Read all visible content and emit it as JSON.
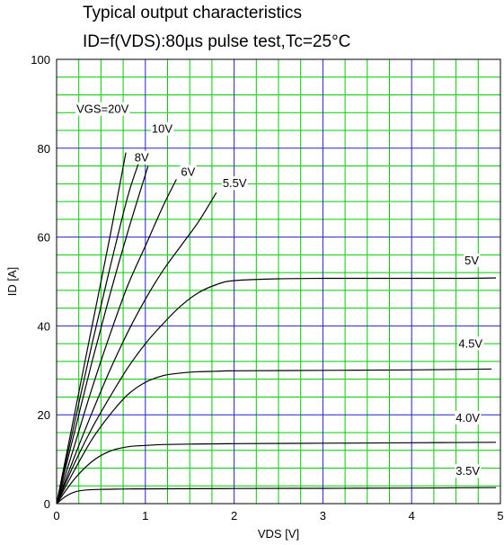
{
  "chart_data": {
    "type": "line",
    "title": "Typical output characteristics",
    "subtitle": "ID=f(VDS):80µs pulse test,Tc=25°C",
    "xlabel": "VDS [V]",
    "ylabel": "ID [A]",
    "xlim": [
      0,
      5
    ],
    "ylim": [
      0,
      100
    ],
    "x_ticks": [
      "0",
      "1",
      "2",
      "3",
      "4",
      "5"
    ],
    "y_ticks": [
      "0",
      "20",
      "40",
      "60",
      "80",
      "100"
    ],
    "grid": true,
    "colors": {
      "minor_grid": "#00cc00",
      "major_grid": "#2222cc",
      "curve": "#000000"
    },
    "series": [
      {
        "name": "VGS=20V",
        "x": [
          0,
          0.2,
          0.4,
          0.6,
          0.78
        ],
        "y": [
          0,
          20,
          40,
          60,
          79
        ]
      },
      {
        "name": "10V",
        "x": [
          0,
          0.2,
          0.4,
          0.6,
          0.8,
          0.93
        ],
        "y": [
          0,
          18,
          36,
          53,
          69,
          77
        ]
      },
      {
        "name": "8V",
        "x": [
          0,
          0.2,
          0.4,
          0.6,
          0.8,
          1.03
        ],
        "y": [
          0,
          16,
          32,
          47,
          61,
          76
        ]
      },
      {
        "name": "6V",
        "x": [
          0,
          0.2,
          0.4,
          0.6,
          0.8,
          1.0,
          1.2,
          1.35
        ],
        "y": [
          0,
          13,
          26,
          38,
          49,
          58,
          67,
          73
        ]
      },
      {
        "name": "5.5V",
        "x": [
          0,
          0.2,
          0.4,
          0.6,
          0.8,
          1.0,
          1.2,
          1.4,
          1.6,
          1.8
        ],
        "y": [
          0,
          10.5,
          20.5,
          30,
          38.5,
          46,
          52.5,
          58,
          63.5,
          70
        ]
      },
      {
        "name": "5V",
        "x": [
          0,
          0.2,
          0.4,
          0.6,
          0.8,
          1.0,
          1.2,
          1.4,
          1.6,
          1.8,
          2.0,
          2.5,
          3.0,
          3.5,
          4.0,
          4.5,
          4.95
        ],
        "y": [
          0,
          9,
          17,
          24,
          30.5,
          36,
          40.5,
          44.5,
          47.5,
          49.3,
          50.2,
          50.6,
          50.7,
          50.7,
          50.7,
          50.7,
          50.8
        ]
      },
      {
        "name": "4.5V",
        "x": [
          0,
          0.2,
          0.4,
          0.6,
          0.8,
          1.0,
          1.2,
          1.4,
          1.6,
          1.8,
          2.0,
          3.0,
          4.0,
          4.5,
          4.9
        ],
        "y": [
          0,
          7.5,
          14.5,
          20,
          24.5,
          27.3,
          28.8,
          29.4,
          29.7,
          29.8,
          29.9,
          30.0,
          30.1,
          30.2,
          30.3
        ]
      },
      {
        "name": "4.0V",
        "x": [
          0,
          0.2,
          0.4,
          0.6,
          0.8,
          1.0,
          1.2,
          1.5,
          2.0,
          3.0,
          4.0,
          4.95
        ],
        "y": [
          0,
          5.5,
          9.5,
          11.8,
          12.8,
          13.1,
          13.3,
          13.4,
          13.5,
          13.6,
          13.7,
          13.8
        ]
      },
      {
        "name": "3.5V",
        "x": [
          0,
          0.1,
          0.2,
          0.3,
          0.5,
          0.8,
          1.2,
          2.0,
          3.0,
          4.0,
          4.95
        ],
        "y": [
          0,
          1.6,
          2.6,
          3.0,
          3.2,
          3.3,
          3.35,
          3.4,
          3.45,
          3.5,
          3.6
        ]
      }
    ],
    "annotations": [
      "VGS=20V",
      "10V",
      "8V",
      "6V",
      "5.5V",
      "5V",
      "4.5V",
      "4.0V",
      "3.5V"
    ]
  }
}
